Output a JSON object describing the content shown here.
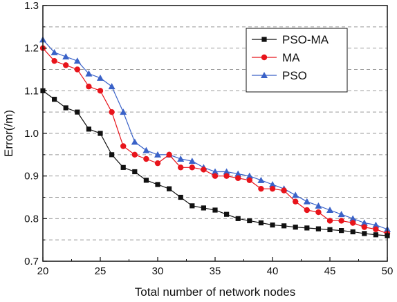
{
  "chart_data": {
    "type": "line",
    "xlabel": "Total number of network nodes",
    "ylabel": "Error(/m)",
    "xlim": [
      20,
      50
    ],
    "ylim": [
      0.7,
      1.3
    ],
    "x_ticks": [
      20,
      25,
      30,
      35,
      40,
      45,
      50
    ],
    "y_ticks": [
      0.7,
      0.8,
      0.9,
      1.0,
      1.1,
      1.2,
      1.3
    ],
    "y_tick_labels": [
      "0.7",
      "0.8",
      "0.9",
      "1.0",
      "1.1",
      "1.2",
      "1.3"
    ],
    "grid": "horizontal dashed at 0.05 intervals",
    "legend_position": "top-right",
    "x": [
      20,
      21,
      22,
      23,
      24,
      25,
      26,
      27,
      28,
      29,
      30,
      31,
      32,
      33,
      34,
      35,
      36,
      37,
      38,
      39,
      40,
      41,
      42,
      43,
      44,
      45,
      46,
      47,
      48,
      49,
      50
    ],
    "series": [
      {
        "name": "PSO-MA",
        "color": "#111111",
        "marker": "square",
        "values": [
          1.1,
          1.08,
          1.06,
          1.05,
          1.01,
          1.0,
          0.95,
          0.92,
          0.91,
          0.89,
          0.88,
          0.87,
          0.85,
          0.83,
          0.825,
          0.82,
          0.81,
          0.8,
          0.795,
          0.79,
          0.785,
          0.783,
          0.78,
          0.778,
          0.776,
          0.774,
          0.772,
          0.769,
          0.765,
          0.762,
          0.76
        ]
      },
      {
        "name": "MA",
        "color": "#e8141b",
        "marker": "circle",
        "values": [
          1.2,
          1.17,
          1.16,
          1.15,
          1.11,
          1.1,
          1.05,
          0.97,
          0.95,
          0.94,
          0.93,
          0.95,
          0.92,
          0.92,
          0.915,
          0.9,
          0.9,
          0.895,
          0.89,
          0.87,
          0.87,
          0.866,
          0.84,
          0.82,
          0.815,
          0.795,
          0.795,
          0.79,
          0.78,
          0.775,
          0.765
        ]
      },
      {
        "name": "PSO",
        "color": "#3a62c8",
        "marker": "triangle",
        "values": [
          1.22,
          1.19,
          1.18,
          1.17,
          1.14,
          1.13,
          1.11,
          1.05,
          0.98,
          0.96,
          0.95,
          0.95,
          0.94,
          0.935,
          0.92,
          0.91,
          0.91,
          0.905,
          0.9,
          0.89,
          0.88,
          0.87,
          0.855,
          0.84,
          0.83,
          0.82,
          0.81,
          0.8,
          0.79,
          0.785,
          0.775
        ]
      }
    ]
  }
}
